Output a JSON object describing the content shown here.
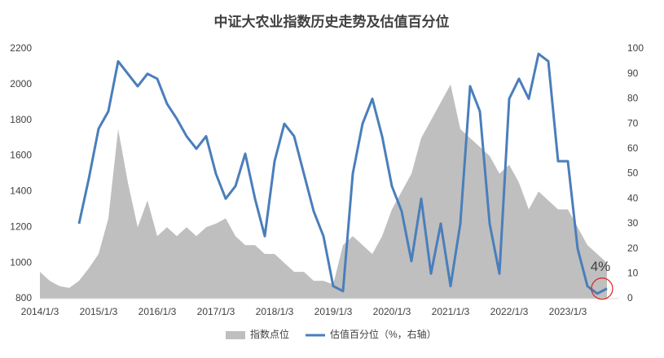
{
  "chart_data": {
    "type": "area-line",
    "title": "中证大农业指数历史走势及估值百分位",
    "categories": [
      "2014/1/3",
      null,
      null,
      null,
      null,
      null,
      "2015/1/3",
      null,
      null,
      null,
      null,
      null,
      "2016/1/3",
      null,
      null,
      null,
      null,
      null,
      "2017/1/3",
      null,
      null,
      null,
      null,
      null,
      "2018/1/3",
      null,
      null,
      null,
      null,
      null,
      "2019/1/3",
      null,
      null,
      null,
      null,
      null,
      "2020/1/3",
      null,
      null,
      null,
      null,
      null,
      "2021/1/3",
      null,
      null,
      null,
      null,
      null,
      "2022/1/3",
      null,
      null,
      null,
      null,
      null,
      "2023/1/3",
      null,
      null,
      null,
      null
    ],
    "series": [
      {
        "name": "指数点位",
        "color": "#bfbfbf",
        "kind": "area",
        "values": [
          950,
          900,
          870,
          860,
          900,
          970,
          1050,
          1250,
          1750,
          1450,
          1200,
          1350,
          1150,
          1200,
          1150,
          1200,
          1150,
          1200,
          1220,
          1250,
          1150,
          1100,
          1100,
          1050,
          1050,
          1000,
          950,
          950,
          900,
          900,
          880,
          1100,
          1150,
          1100,
          1050,
          1150,
          1300,
          1400,
          1500,
          1700,
          1800,
          1900,
          2000,
          1750,
          1700,
          1650,
          1600,
          1500,
          1550,
          1450,
          1300,
          1400,
          1350,
          1300,
          1300,
          1200,
          1100,
          1050,
          1000
        ]
      },
      {
        "name": "估值百分位（%，右轴）",
        "color": "#4a7ebb",
        "kind": "line",
        "axis": "y2",
        "values": [
          null,
          null,
          null,
          null,
          30,
          48,
          68,
          75,
          95,
          90,
          85,
          90,
          88,
          78,
          72,
          65,
          60,
          65,
          50,
          40,
          45,
          58,
          40,
          25,
          55,
          70,
          65,
          50,
          35,
          25,
          5,
          3,
          50,
          70,
          80,
          65,
          45,
          35,
          15,
          40,
          10,
          30,
          5,
          30,
          85,
          75,
          30,
          10,
          80,
          88,
          80,
          98,
          95,
          55,
          55,
          20,
          5,
          2,
          4
        ]
      }
    ],
    "annotation": "4%",
    "ylim": [
      800,
      2200
    ],
    "yticks": [
      800,
      1000,
      1200,
      1400,
      1600,
      1800,
      2000,
      2200
    ],
    "y2lim": [
      0,
      100
    ],
    "y2ticks": [
      0,
      10,
      20,
      30,
      40,
      50,
      60,
      70,
      80,
      90,
      100
    ],
    "legend": "bottom"
  }
}
